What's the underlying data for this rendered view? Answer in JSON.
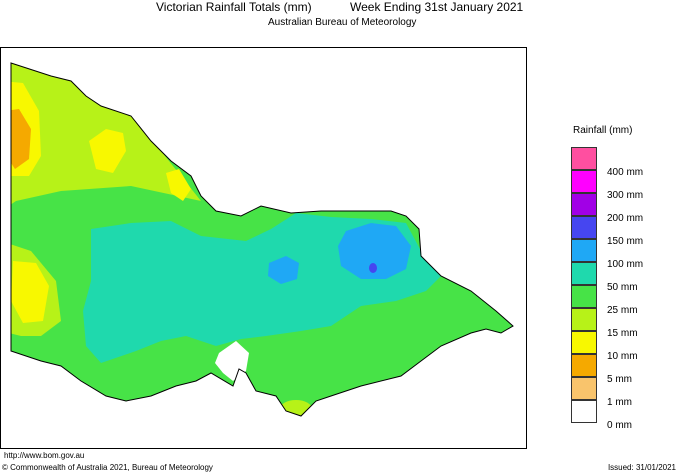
{
  "title": "Victorian Rainfall Totals (mm)",
  "period": "Week Ending 31st January 2021",
  "subtitle": "Australian Bureau of Meteorology",
  "legend": {
    "title": "Rainfall (mm)",
    "items": [
      {
        "label": "400 mm",
        "color": "#ff4fa0"
      },
      {
        "label": "300 mm",
        "color": "#ff00ff"
      },
      {
        "label": "200 mm",
        "color": "#a100e6"
      },
      {
        "label": "150 mm",
        "color": "#4646f0"
      },
      {
        "label": "100 mm",
        "color": "#1fa8f5"
      },
      {
        "label": "50 mm",
        "color": "#1fd9ad"
      },
      {
        "label": "25 mm",
        "color": "#47e347"
      },
      {
        "label": "15 mm",
        "color": "#b7f218"
      },
      {
        "label": "10 mm",
        "color": "#f8f800"
      },
      {
        "label": "5 mm",
        "color": "#f5a900"
      },
      {
        "label": "1 mm",
        "color": "#f9c46c"
      },
      {
        "label": "0 mm",
        "color": "#ffffff"
      }
    ]
  },
  "url": "http://www.bom.gov.au",
  "copyright": "© Commonwealth of Australia 2021, Bureau of Meteorology",
  "issued": "Issued: 31/01/2021"
}
